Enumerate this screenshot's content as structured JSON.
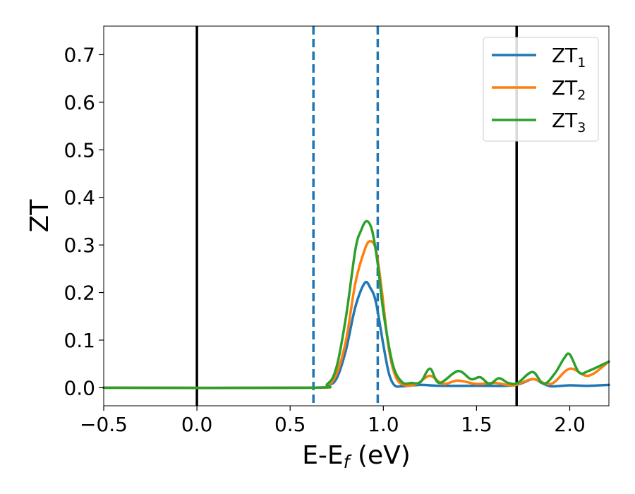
{
  "chart_data": {
    "type": "line",
    "xlabel": "E-E",
    "xlabel_sub": "f",
    "xlabel_unit": "(eV)",
    "ylabel": "ZT",
    "xlim": [
      -0.5,
      2.21
    ],
    "ylim": [
      -0.038,
      0.76
    ],
    "xticks": [
      -0.5,
      0.0,
      0.5,
      1.0,
      1.5,
      2.0
    ],
    "xtick_labels": [
      "−0.5",
      "0.0",
      "0.5",
      "1.0",
      "1.5",
      "2.0"
    ],
    "yticks": [
      0.0,
      0.1,
      0.2,
      0.3,
      0.4,
      0.5,
      0.6,
      0.7
    ],
    "ytick_labels": [
      "0.0",
      "0.1",
      "0.2",
      "0.3",
      "0.4",
      "0.5",
      "0.6",
      "0.7"
    ],
    "grid": false,
    "legend_position": "top-right",
    "vlines": [
      {
        "x": 0.0,
        "color": "#000000",
        "style": "solid"
      },
      {
        "x": 1.715,
        "color": "#000000",
        "style": "solid"
      },
      {
        "x": 0.625,
        "color": "#1f77b4",
        "style": "dashed"
      },
      {
        "x": 0.97,
        "color": "#1f77b4",
        "style": "dashed"
      }
    ],
    "series": [
      {
        "name": "ZT",
        "sub": "1",
        "color": "#1f77b4",
        "x": [
          -0.5,
          0.6,
          0.7,
          0.75,
          0.8,
          0.85,
          0.9,
          0.93,
          0.96,
          1.0,
          1.03,
          1.06,
          1.1,
          1.2,
          1.3,
          1.5,
          1.7,
          1.8,
          1.85,
          1.9,
          2.0,
          2.1,
          2.21
        ],
        "y": [
          0.0,
          0.0,
          0.005,
          0.02,
          0.08,
          0.17,
          0.22,
          0.21,
          0.18,
          0.09,
          0.03,
          0.005,
          0.003,
          0.006,
          0.004,
          0.004,
          0.005,
          0.018,
          0.01,
          0.003,
          0.005,
          0.004,
          0.006
        ]
      },
      {
        "name": "ZT",
        "sub": "2",
        "color": "#ff7f0e",
        "x": [
          -0.5,
          0.6,
          0.7,
          0.75,
          0.8,
          0.85,
          0.9,
          0.93,
          0.96,
          0.99,
          1.03,
          1.07,
          1.12,
          1.18,
          1.25,
          1.32,
          1.4,
          1.5,
          1.6,
          1.7,
          1.8,
          1.9,
          2.0,
          2.1,
          2.21
        ],
        "y": [
          0.0,
          0.0,
          0.005,
          0.03,
          0.1,
          0.22,
          0.29,
          0.308,
          0.29,
          0.21,
          0.08,
          0.02,
          0.005,
          0.008,
          0.025,
          0.008,
          0.015,
          0.008,
          0.01,
          0.005,
          0.018,
          0.008,
          0.04,
          0.025,
          0.055
        ]
      },
      {
        "name": "ZT",
        "sub": "3",
        "color": "#2ca02c",
        "x": [
          -0.5,
          0.6,
          0.7,
          0.75,
          0.8,
          0.85,
          0.88,
          0.91,
          0.94,
          0.97,
          1.0,
          1.05,
          1.1,
          1.15,
          1.2,
          1.25,
          1.3,
          1.4,
          1.47,
          1.52,
          1.57,
          1.62,
          1.67,
          1.72,
          1.8,
          1.86,
          1.92,
          1.97,
          2.0,
          2.05,
          2.1,
          2.21
        ],
        "y": [
          0.0,
          0.0,
          0.008,
          0.045,
          0.15,
          0.29,
          0.33,
          0.35,
          0.33,
          0.26,
          0.16,
          0.05,
          0.012,
          0.01,
          0.012,
          0.04,
          0.01,
          0.035,
          0.018,
          0.022,
          0.008,
          0.02,
          0.01,
          0.01,
          0.033,
          0.008,
          0.03,
          0.062,
          0.07,
          0.032,
          0.035,
          0.055
        ]
      }
    ]
  }
}
